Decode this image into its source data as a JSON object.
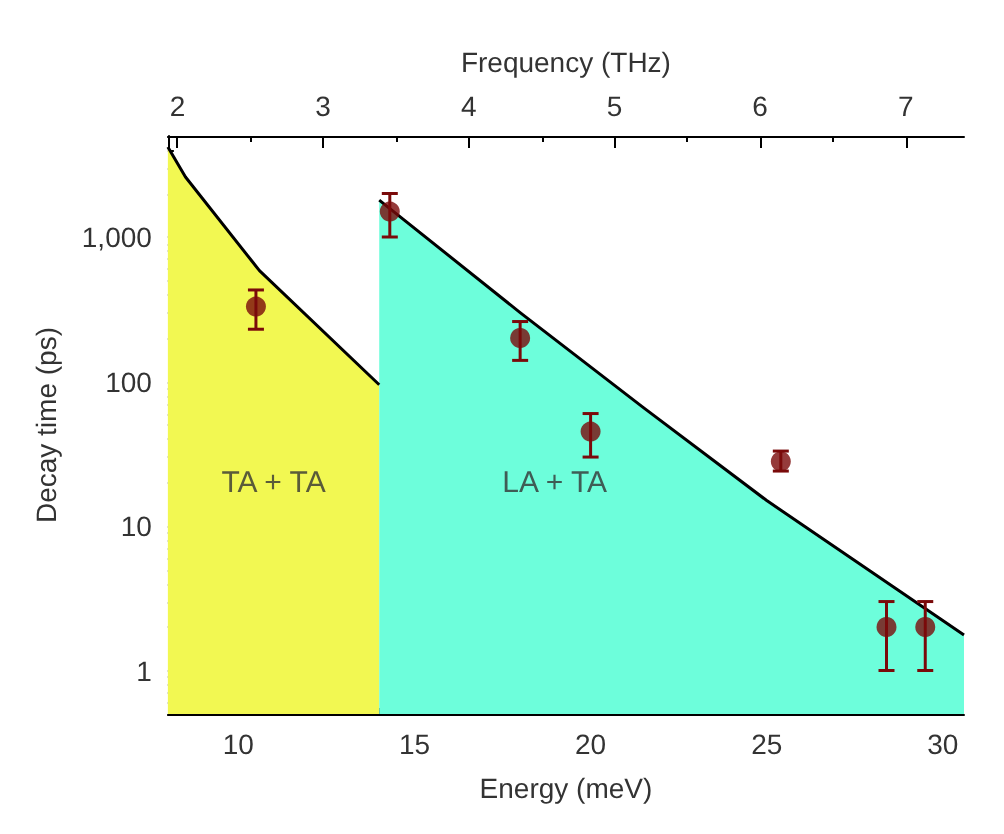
{
  "chart_data": {
    "type": "scatter",
    "xlabel": "Energy (meV)",
    "ylabel": "Decay time (ps)",
    "x2label": "Frequency (THz)",
    "xlim": [
      8,
      30.6
    ],
    "xticks": [
      10,
      15,
      20,
      25,
      30
    ],
    "x2lim": [
      1.934,
      7.4
    ],
    "x2ticks": [
      2,
      3,
      4,
      5,
      6,
      7
    ],
    "ylim": [
      0.5,
      5000
    ],
    "yticks": [
      1,
      10,
      100,
      {
        "value": 1000,
        "label": "1,000"
      }
    ],
    "log": "y",
    "grid": false,
    "series": [
      {
        "type": "area",
        "color": "#f2f852",
        "x": [
          8,
          8.5,
          10.6,
          14
        ],
        "values": [
          4200,
          2600,
          585,
          95
        ]
      },
      {
        "type": "area",
        "color": "#6dfedb",
        "x": [
          14,
          18,
          21.5,
          25,
          30.6
        ],
        "values": [
          1800,
          300,
          66,
          15,
          1.76
        ]
      },
      {
        "marker": "circle",
        "color": "#7a0a0a",
        "x": [
          10.5,
          14.3,
          18,
          20,
          25.4,
          28.4,
          29.5
        ],
        "values": [
          330,
          1500,
          200,
          45,
          28,
          2,
          2
        ],
        "errors": [
          [
            230,
            430
          ],
          [
            1000,
            2000
          ],
          [
            140,
            260
          ],
          [
            30,
            60
          ],
          [
            24,
            33
          ],
          [
            1,
            3
          ],
          [
            1,
            3
          ]
        ]
      }
    ],
    "annotations": [
      "TA + TA",
      "LA + TA"
    ]
  }
}
